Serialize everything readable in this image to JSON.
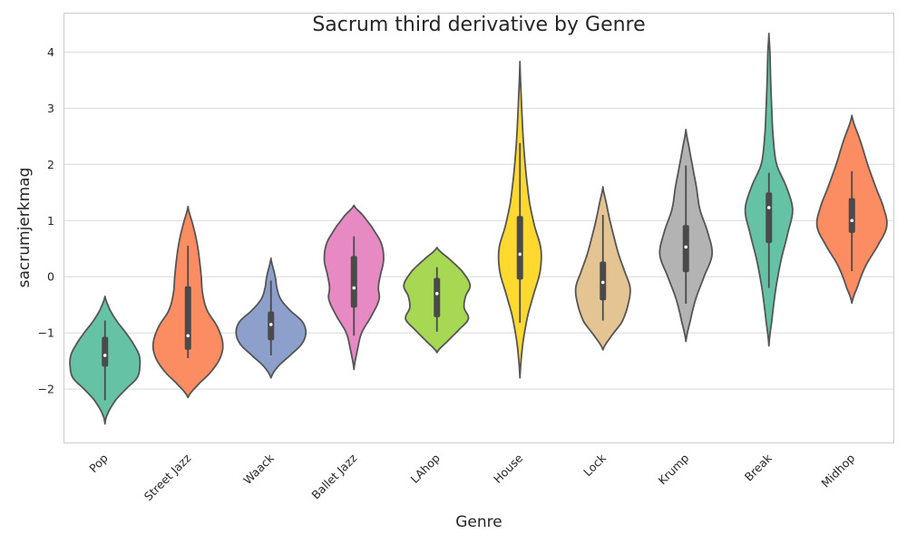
{
  "chart_data": {
    "type": "violin",
    "title": "Sacrum third derivative by Genre",
    "xlabel": "Genre",
    "ylabel": "sacrumjerkmag",
    "ylim": [
      -2.95,
      4.7
    ],
    "yticks": [
      -2,
      -1,
      0,
      1,
      2,
      3,
      4
    ],
    "ytick_labels": [
      "−2",
      "−1",
      "0",
      "1",
      "2",
      "3",
      "4"
    ],
    "grid": true,
    "categories": [
      "Pop",
      "Street Jazz",
      "Waack",
      "Ballet Jazz",
      "LAhop",
      "House",
      "Lock",
      "Krump",
      "Break",
      "Midhop"
    ],
    "series": [
      {
        "category": "Pop",
        "color": "#66c2a5",
        "min": -2.2,
        "q1": -1.6,
        "median": -1.4,
        "q3": -1.07,
        "max": -0.78,
        "kde_min": -2.62,
        "kde_max": -0.35,
        "profile": [
          [
            -2.62,
            0.0
          ],
          [
            -2.45,
            0.07
          ],
          [
            -2.2,
            0.3
          ],
          [
            -2.0,
            0.6
          ],
          [
            -1.8,
            0.92
          ],
          [
            -1.6,
            1.0
          ],
          [
            -1.4,
            0.98
          ],
          [
            -1.2,
            0.82
          ],
          [
            -1.0,
            0.6
          ],
          [
            -0.8,
            0.35
          ],
          [
            -0.6,
            0.15
          ],
          [
            -0.35,
            0.0
          ]
        ]
      },
      {
        "category": "Street Jazz",
        "color": "#fc8d62",
        "min": -1.45,
        "q1": -1.3,
        "median": -1.05,
        "q3": -0.17,
        "max": 0.55,
        "kde_min": -2.15,
        "kde_max": 1.25,
        "profile": [
          [
            -2.15,
            0.0
          ],
          [
            -1.95,
            0.25
          ],
          [
            -1.7,
            0.65
          ],
          [
            -1.45,
            0.92
          ],
          [
            -1.2,
            1.0
          ],
          [
            -0.9,
            0.85
          ],
          [
            -0.6,
            0.55
          ],
          [
            -0.3,
            0.42
          ],
          [
            0.0,
            0.38
          ],
          [
            0.3,
            0.33
          ],
          [
            0.6,
            0.26
          ],
          [
            0.9,
            0.15
          ],
          [
            1.25,
            0.0
          ]
        ]
      },
      {
        "category": "Waack",
        "color": "#8da0cb",
        "min": -1.4,
        "q1": -1.13,
        "median": -0.85,
        "q3": -0.62,
        "max": -0.07,
        "kde_min": -1.8,
        "kde_max": 0.33,
        "profile": [
          [
            -1.8,
            0.0
          ],
          [
            -1.6,
            0.2
          ],
          [
            -1.4,
            0.55
          ],
          [
            -1.2,
            0.88
          ],
          [
            -1.0,
            1.0
          ],
          [
            -0.8,
            0.9
          ],
          [
            -0.6,
            0.55
          ],
          [
            -0.4,
            0.28
          ],
          [
            -0.2,
            0.17
          ],
          [
            0.0,
            0.12
          ],
          [
            0.33,
            0.0
          ]
        ]
      },
      {
        "category": "Ballet Jazz",
        "color": "#e78ac3",
        "min": -1.05,
        "q1": -0.55,
        "median": -0.2,
        "q3": 0.37,
        "max": 0.72,
        "kde_min": -1.65,
        "kde_max": 1.27,
        "profile": [
          [
            -1.65,
            0.0
          ],
          [
            -1.3,
            0.1
          ],
          [
            -1.0,
            0.22
          ],
          [
            -0.7,
            0.5
          ],
          [
            -0.4,
            0.72
          ],
          [
            -0.2,
            0.7
          ],
          [
            0.0,
            0.75
          ],
          [
            0.3,
            0.85
          ],
          [
            0.6,
            0.78
          ],
          [
            0.9,
            0.5
          ],
          [
            1.1,
            0.25
          ],
          [
            1.27,
            0.0
          ]
        ]
      },
      {
        "category": "LAhop",
        "color": "#a6d854",
        "min": -0.98,
        "q1": -0.72,
        "median": -0.3,
        "q3": -0.02,
        "max": 0.17,
        "kde_min": -1.35,
        "kde_max": 0.52,
        "profile": [
          [
            -1.35,
            0.0
          ],
          [
            -1.15,
            0.3
          ],
          [
            -0.95,
            0.62
          ],
          [
            -0.75,
            0.9
          ],
          [
            -0.55,
            0.78
          ],
          [
            -0.35,
            0.82
          ],
          [
            -0.15,
            0.95
          ],
          [
            0.1,
            0.72
          ],
          [
            0.3,
            0.38
          ],
          [
            0.52,
            0.0
          ]
        ]
      },
      {
        "category": "House",
        "color": "#ffd92f",
        "min": -0.82,
        "q1": -0.05,
        "median": 0.4,
        "q3": 1.08,
        "max": 2.38,
        "kde_min": -1.8,
        "kde_max": 3.83,
        "profile": [
          [
            -1.8,
            0.0
          ],
          [
            -1.2,
            0.08
          ],
          [
            -0.7,
            0.22
          ],
          [
            -0.3,
            0.4
          ],
          [
            0.1,
            0.58
          ],
          [
            0.5,
            0.6
          ],
          [
            0.9,
            0.42
          ],
          [
            1.3,
            0.28
          ],
          [
            1.8,
            0.18
          ],
          [
            2.4,
            0.1
          ],
          [
            3.0,
            0.05
          ],
          [
            3.83,
            0.0
          ]
        ]
      },
      {
        "category": "Lock",
        "color": "#e5c494",
        "min": -0.78,
        "q1": -0.42,
        "median": -0.1,
        "q3": 0.27,
        "max": 1.1,
        "kde_min": -1.3,
        "kde_max": 1.6,
        "profile": [
          [
            -1.3,
            0.0
          ],
          [
            -1.05,
            0.25
          ],
          [
            -0.8,
            0.55
          ],
          [
            -0.5,
            0.72
          ],
          [
            -0.2,
            0.78
          ],
          [
            0.1,
            0.62
          ],
          [
            0.4,
            0.45
          ],
          [
            0.7,
            0.32
          ],
          [
            1.0,
            0.2
          ],
          [
            1.3,
            0.1
          ],
          [
            1.6,
            0.0
          ]
        ]
      },
      {
        "category": "Krump",
        "color": "#b3b3b3",
        "min": -0.48,
        "q1": 0.08,
        "median": 0.53,
        "q3": 0.92,
        "max": 1.98,
        "kde_min": -1.15,
        "kde_max": 2.62,
        "profile": [
          [
            -1.15,
            0.0
          ],
          [
            -0.8,
            0.12
          ],
          [
            -0.4,
            0.28
          ],
          [
            0.0,
            0.52
          ],
          [
            0.4,
            0.75
          ],
          [
            0.8,
            0.62
          ],
          [
            1.2,
            0.4
          ],
          [
            1.6,
            0.3
          ],
          [
            2.0,
            0.18
          ],
          [
            2.3,
            0.09
          ],
          [
            2.62,
            0.0
          ]
        ]
      },
      {
        "category": "Break",
        "color": "#66c2a5",
        "min": -0.2,
        "q1": 0.6,
        "median": 1.23,
        "q3": 1.5,
        "max": 1.85,
        "kde_min": -1.23,
        "kde_max": 4.33,
        "profile": [
          [
            -1.23,
            0.0
          ],
          [
            -0.8,
            0.08
          ],
          [
            -0.2,
            0.2
          ],
          [
            0.3,
            0.35
          ],
          [
            0.8,
            0.55
          ],
          [
            1.2,
            0.68
          ],
          [
            1.6,
            0.5
          ],
          [
            2.0,
            0.22
          ],
          [
            2.5,
            0.12
          ],
          [
            3.0,
            0.08
          ],
          [
            3.5,
            0.05
          ],
          [
            4.0,
            0.03
          ],
          [
            4.33,
            0.0
          ]
        ]
      },
      {
        "category": "Midhop",
        "color": "#fc8d62",
        "min": 0.1,
        "q1": 0.78,
        "median": 1.0,
        "q3": 1.4,
        "max": 1.88,
        "kde_min": -0.47,
        "kde_max": 2.87,
        "profile": [
          [
            -0.47,
            0.0
          ],
          [
            -0.2,
            0.15
          ],
          [
            0.2,
            0.4
          ],
          [
            0.6,
            0.78
          ],
          [
            0.9,
            1.0
          ],
          [
            1.2,
            0.92
          ],
          [
            1.6,
            0.68
          ],
          [
            2.0,
            0.45
          ],
          [
            2.4,
            0.25
          ],
          [
            2.87,
            0.0
          ]
        ]
      }
    ]
  }
}
